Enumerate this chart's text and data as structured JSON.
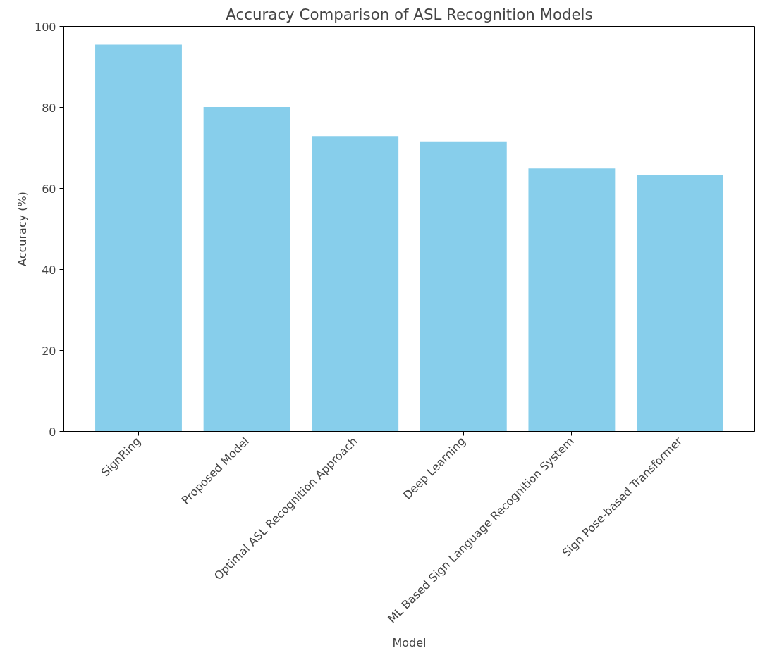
{
  "chart_data": {
    "type": "bar",
    "title": "Accuracy Comparison of ASL Recognition Models",
    "xlabel": "Model",
    "ylabel": "Accuracy (%)",
    "categories": [
      "SignRing",
      "Proposed Model",
      "Optimal ASL Recognition Approach",
      "Deep Learning",
      "ML Based Sign Language Recognition System",
      "Sign Pose-based Transformer"
    ],
    "values": [
      95.5,
      80.1,
      72.9,
      71.6,
      64.9,
      63.4
    ],
    "color": "#87ceeb",
    "ylim": [
      0,
      100
    ],
    "yticks": [
      0,
      20,
      40,
      60,
      80,
      100
    ],
    "grid": false
  }
}
